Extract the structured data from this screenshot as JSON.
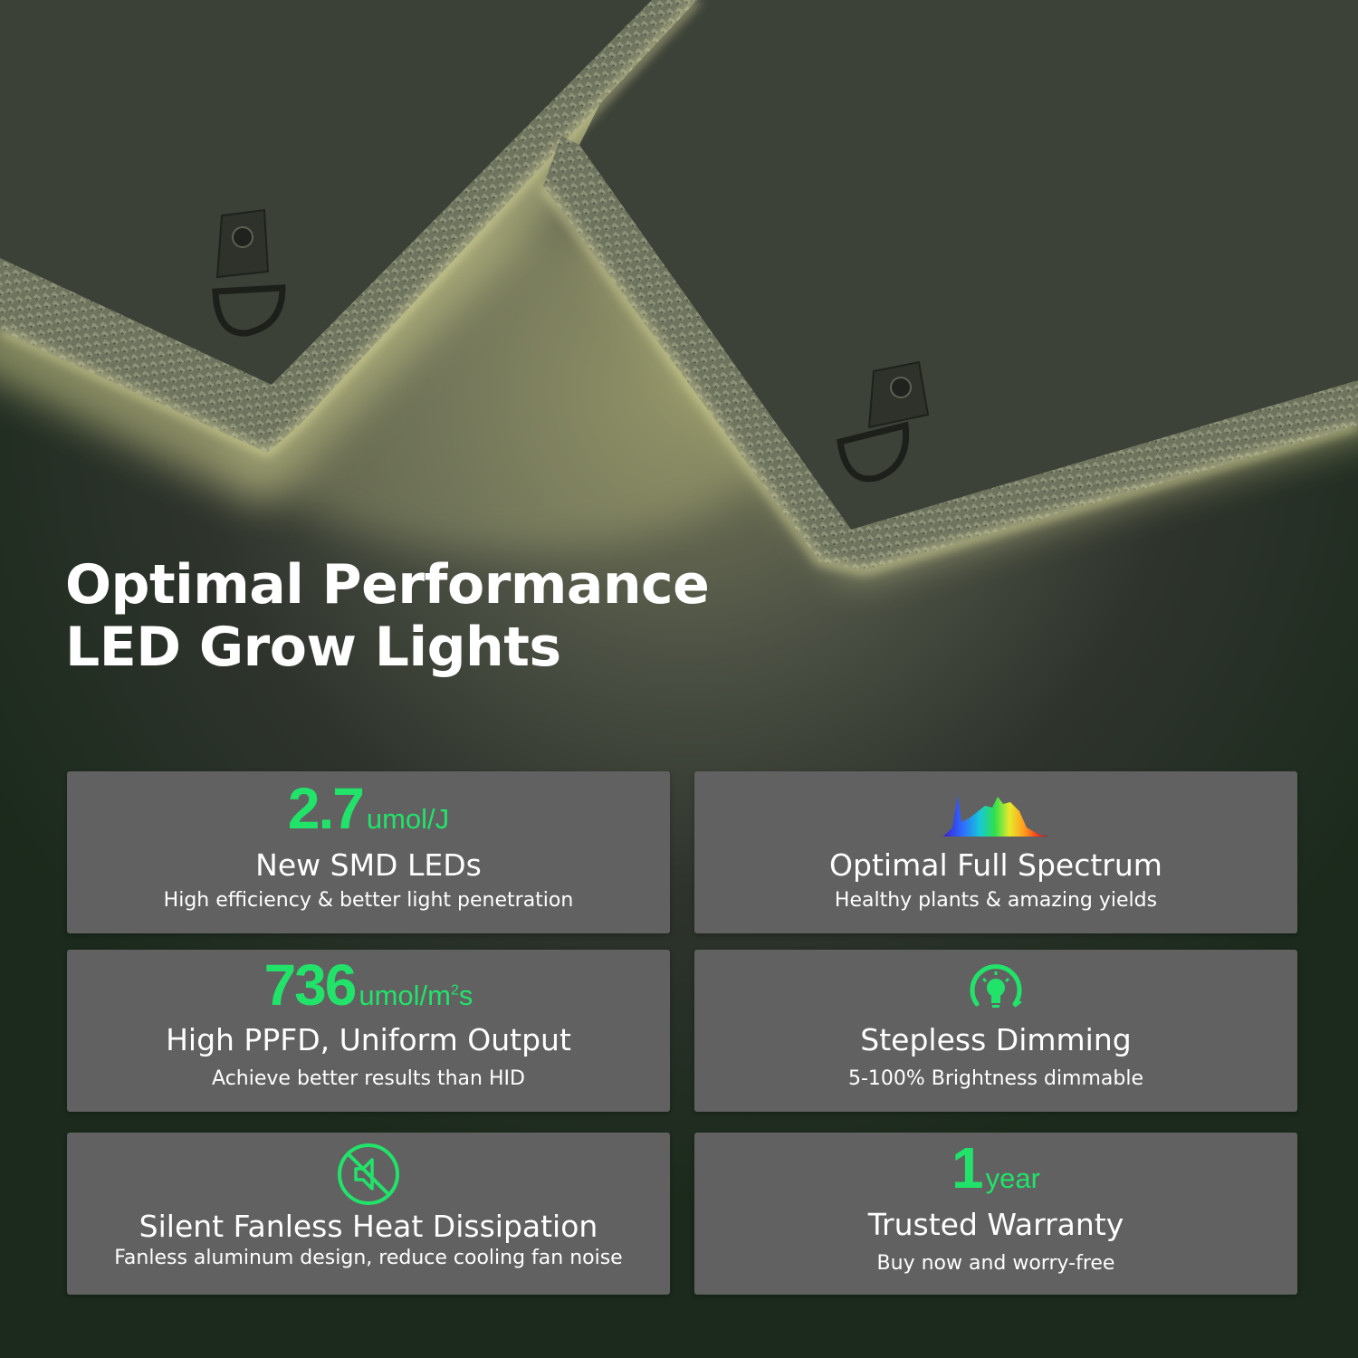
{
  "headline": {
    "line1": "Optimal Performance",
    "line2": "LED Grow Lights"
  },
  "features": [
    {
      "stat_value": "2.7",
      "stat_unit": "umol/J",
      "title": "New SMD LEDs",
      "subtitle": "High efficiency & better light penetration"
    },
    {
      "icon": "spectrum-icon",
      "title": "Optimal Full Spectrum",
      "subtitle": "Healthy plants & amazing yields"
    },
    {
      "stat_value": "736",
      "stat_unit": "umol/m",
      "stat_unit_sup": "2",
      "stat_unit_suffix": "s",
      "title": "High PPFD, Uniform Output",
      "subtitle": "Achieve better results than HID"
    },
    {
      "icon": "dimming-bulb-icon",
      "title": "Stepless Dimming",
      "subtitle": "5-100% Brightness dimmable"
    },
    {
      "icon": "fan-muted-icon",
      "title": "Silent Fanless Heat Dissipation",
      "subtitle": "Fanless aluminum design, reduce cooling fan noise"
    },
    {
      "stat_value": "1",
      "stat_unit": "year",
      "title": "Trusted Warranty",
      "subtitle": "Buy now and worry-free"
    }
  ],
  "colors": {
    "accent_green": "#22e36a",
    "card_gray": "#616161",
    "glow_yellow": "#f2f0a4",
    "text_white": "#ffffff"
  }
}
